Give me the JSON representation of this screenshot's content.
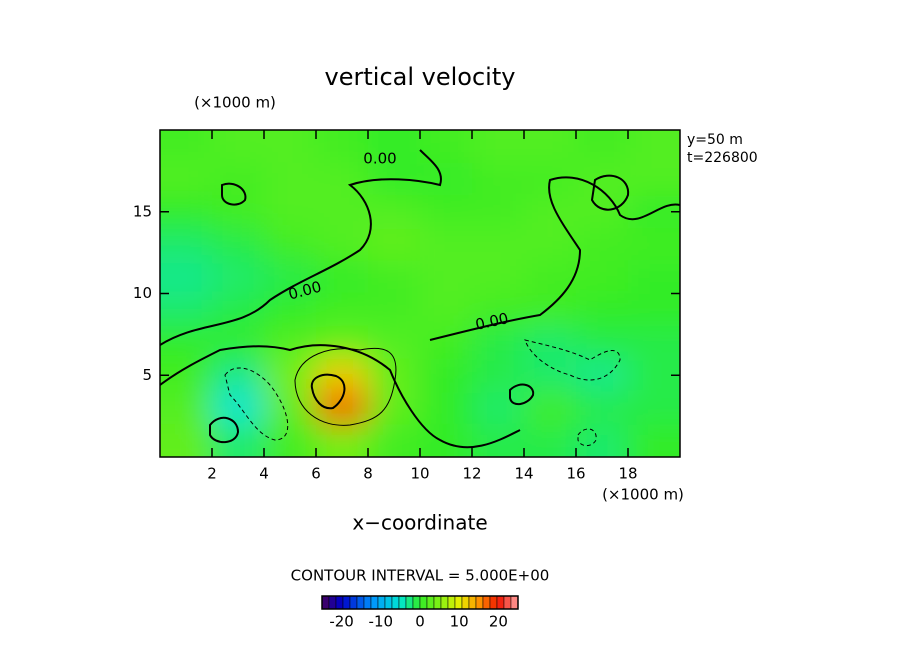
{
  "chart_data": {
    "type": "contour",
    "title": "vertical velocity",
    "x_label": "x−coordinate",
    "x_unit": "(×1000 m)",
    "y_unit": "(×1000 m)",
    "annotations": [
      "y=50 m",
      "t=226800"
    ],
    "contour_note": "CONTOUR INTERVAL = 5.000E+00",
    "contour_labels": [
      "0.00",
      "0.00",
      "0.00"
    ],
    "xlim": [
      0,
      20
    ],
    "ylim": [
      0,
      20
    ],
    "xticks": [
      2,
      4,
      6,
      8,
      10,
      12,
      14,
      16,
      18
    ],
    "yticks": [
      5,
      10,
      15
    ],
    "z": [
      [
        1,
        2,
        2,
        1,
        0,
        1,
        2,
        2,
        1,
        2
      ],
      [
        2,
        1,
        2,
        2,
        0,
        0,
        1,
        1,
        2,
        2
      ],
      [
        0,
        1,
        2,
        2,
        2,
        1,
        1,
        2,
        2,
        0
      ],
      [
        -2,
        -1,
        1,
        2,
        3,
        2,
        2,
        2,
        1,
        1
      ],
      [
        -3,
        -2,
        -1,
        0,
        1,
        2,
        2,
        1,
        1,
        0
      ],
      [
        -2,
        -1,
        0,
        1,
        1,
        2,
        1,
        1,
        0,
        0
      ],
      [
        0,
        0,
        2,
        3,
        2,
        1,
        -1,
        -2,
        -1,
        -1
      ],
      [
        1,
        -3,
        4,
        12,
        3,
        0,
        -1,
        -2,
        -3,
        -1
      ],
      [
        2,
        -5,
        3,
        18,
        3,
        0,
        -2,
        1,
        -1,
        -1
      ],
      [
        3,
        -2,
        1,
        4,
        1,
        0,
        -1,
        -1,
        -2,
        0
      ]
    ],
    "colorbar": {
      "lim": [
        -25,
        25
      ],
      "ticks": [
        -20,
        -10,
        0,
        10,
        20
      ]
    }
  }
}
